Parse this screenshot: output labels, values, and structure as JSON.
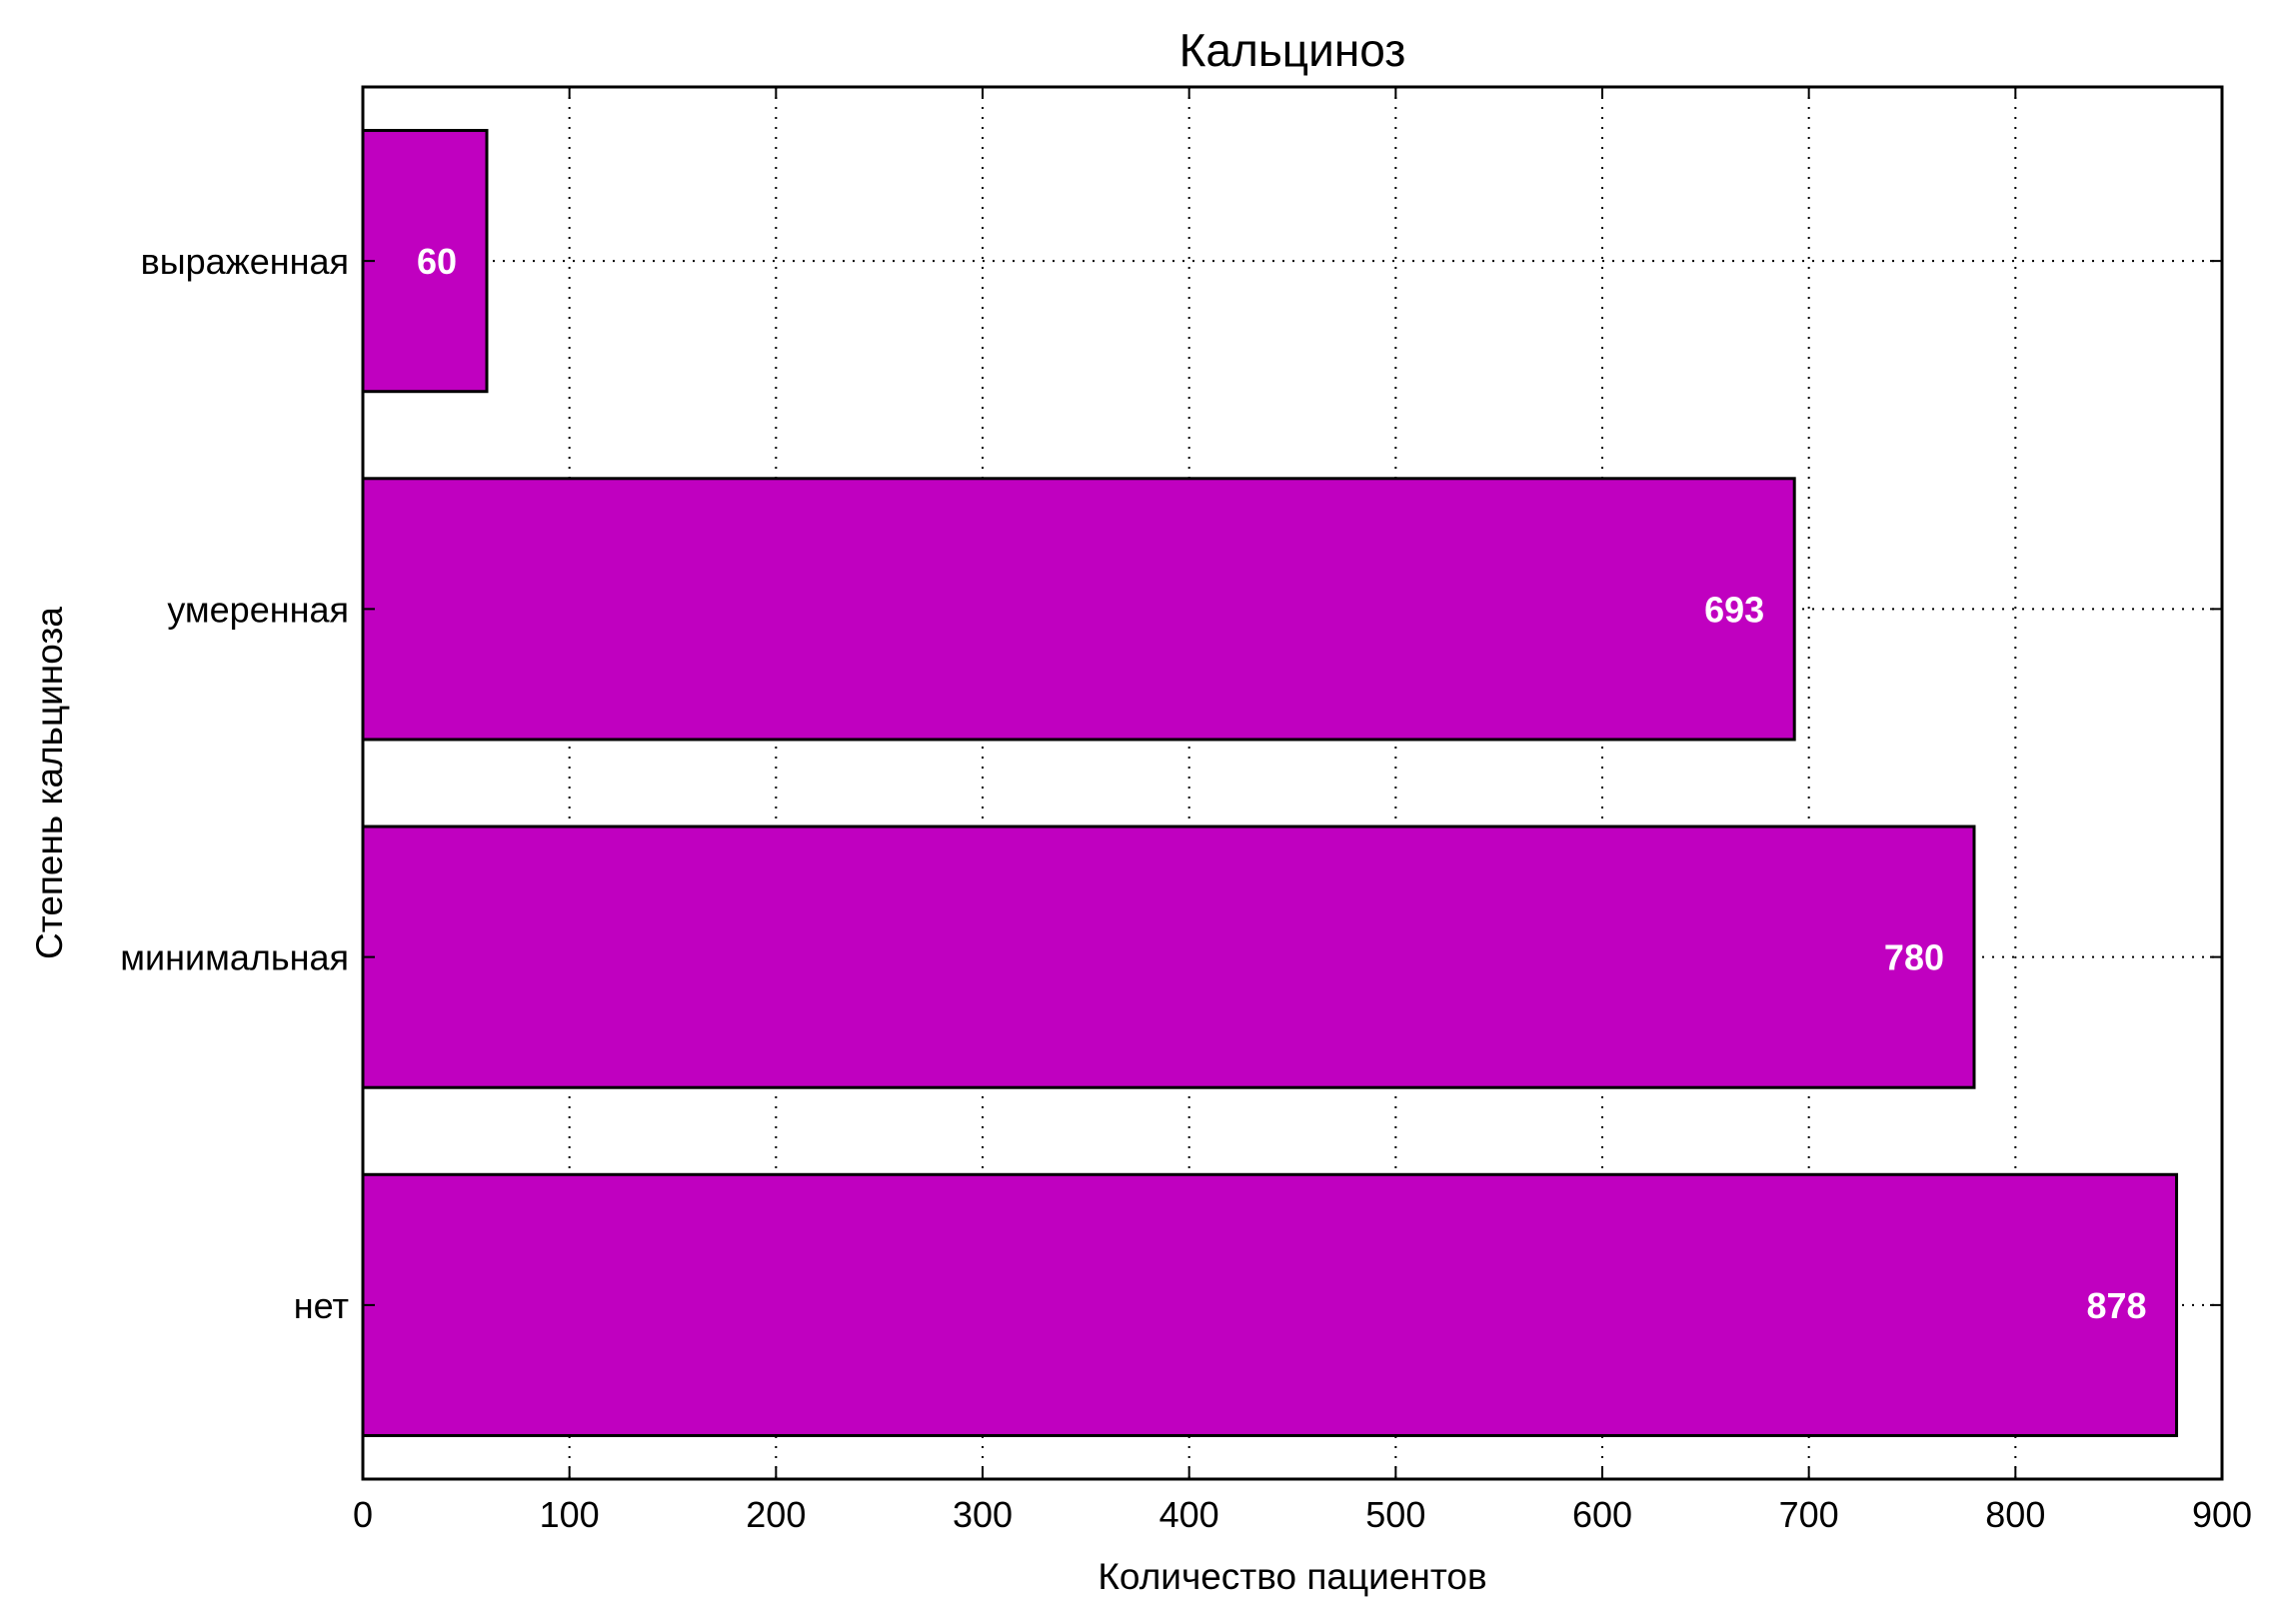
{
  "chart_data": {
    "type": "bar",
    "orientation": "horizontal",
    "title": "Кальциноз",
    "xlabel": "Количество пациентов",
    "ylabel": "Степень кальциноза",
    "categories": [
      "выраженная",
      "умеренная",
      "минимальная",
      "нет"
    ],
    "values": [
      60,
      693,
      780,
      878
    ],
    "data_labels": [
      "60",
      "693",
      "780",
      "878"
    ],
    "xlim": [
      0,
      900
    ],
    "xticks": [
      0,
      100,
      200,
      300,
      400,
      500,
      600,
      700,
      800,
      900
    ],
    "xtick_labels": [
      "0",
      "100",
      "200",
      "300",
      "400",
      "500",
      "600",
      "700",
      "800",
      "900"
    ],
    "grid": true,
    "bar_color": "#c000c0",
    "label_color": "#ffffff"
  }
}
